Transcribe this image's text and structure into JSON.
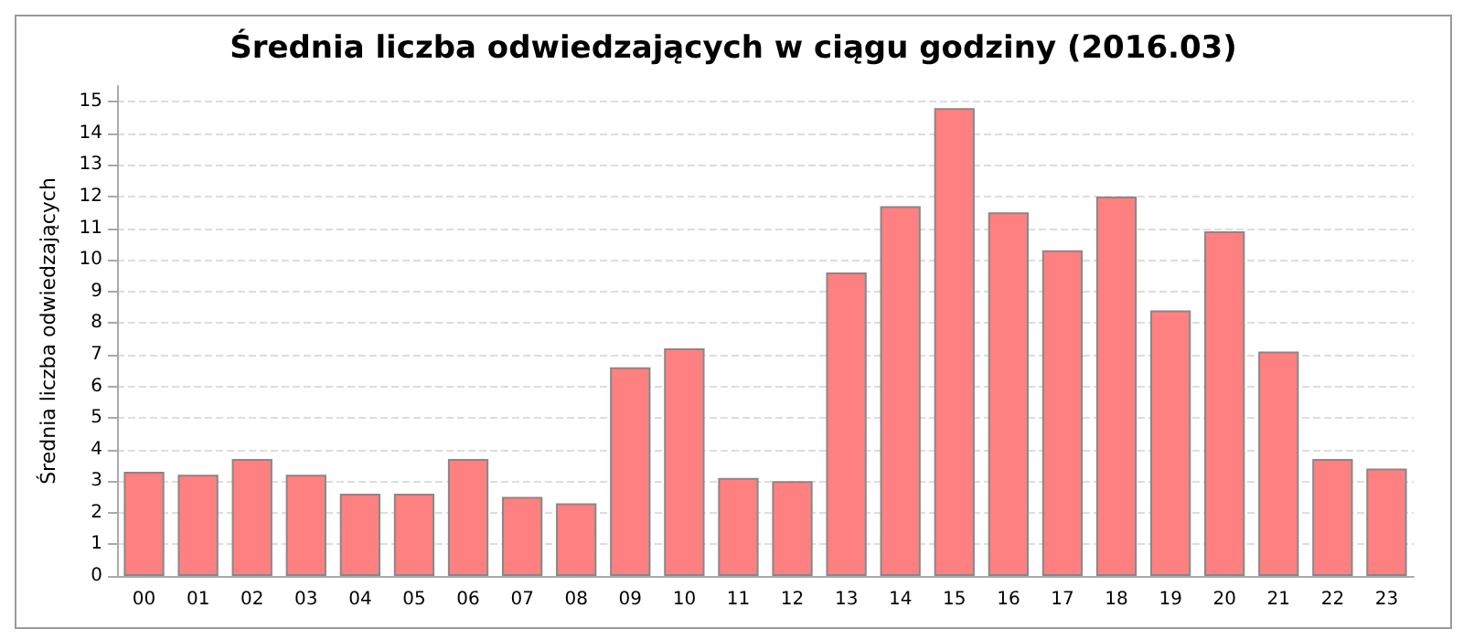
{
  "chart_data": {
    "type": "bar",
    "title": "Średnia liczba odwiedzających w ciągu godziny (2016.03)",
    "ylabel": "Średnia liczba odwiedzających",
    "categories": [
      "00",
      "01",
      "02",
      "03",
      "04",
      "05",
      "06",
      "07",
      "08",
      "09",
      "10",
      "11",
      "12",
      "13",
      "14",
      "15",
      "16",
      "17",
      "18",
      "19",
      "20",
      "21",
      "22",
      "23"
    ],
    "values": [
      3.3,
      3.2,
      3.7,
      3.2,
      2.6,
      2.6,
      3.7,
      2.5,
      2.3,
      6.6,
      7.2,
      3.1,
      3.0,
      9.6,
      11.7,
      14.8,
      11.5,
      10.3,
      12.0,
      8.4,
      10.9,
      7.1,
      3.7,
      3.4
    ],
    "color": "#ff8080",
    "ylim": [
      0,
      15.5
    ],
    "yticks": [
      0,
      1,
      2,
      3,
      4,
      5,
      6,
      7,
      8,
      9,
      10,
      11,
      12,
      13,
      14,
      15
    ],
    "grid": "y"
  }
}
